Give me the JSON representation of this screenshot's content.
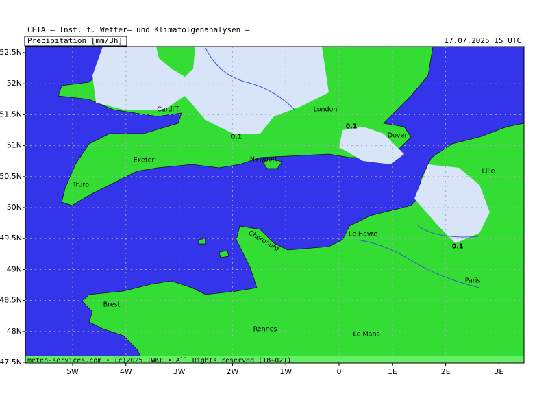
{
  "header": {
    "title": "CETA – Inst. f. Wetter– und Klimafolgenanalysen –",
    "parameter": "Precipitation [mm/3h]",
    "datetime": "17.07.2025 15 UTC"
  },
  "map": {
    "lat_labels": [
      "52.5N",
      "52N",
      "51.5N",
      "51N",
      "50.5N",
      "50N",
      "49.5N",
      "49N",
      "48.5N",
      "48N",
      "47.5N"
    ],
    "lon_labels": [
      "5W",
      "4W",
      "3W",
      "2W",
      "1W",
      "0",
      "1E",
      "2E",
      "3E"
    ],
    "places": [
      "Cardiff",
      "London",
      "Dover",
      "Exeter",
      "Newport",
      "Truro",
      "Lille",
      "Le Havre",
      "Cherbourg",
      "Paris",
      "Brest",
      "Rennes",
      "Le Mans"
    ],
    "contour_labels": [
      "0.1",
      "0.1",
      "0.1"
    ],
    "footer": "meteo-services.com • (c)2025 IWKF • All Rights reserved (18+021)"
  }
}
